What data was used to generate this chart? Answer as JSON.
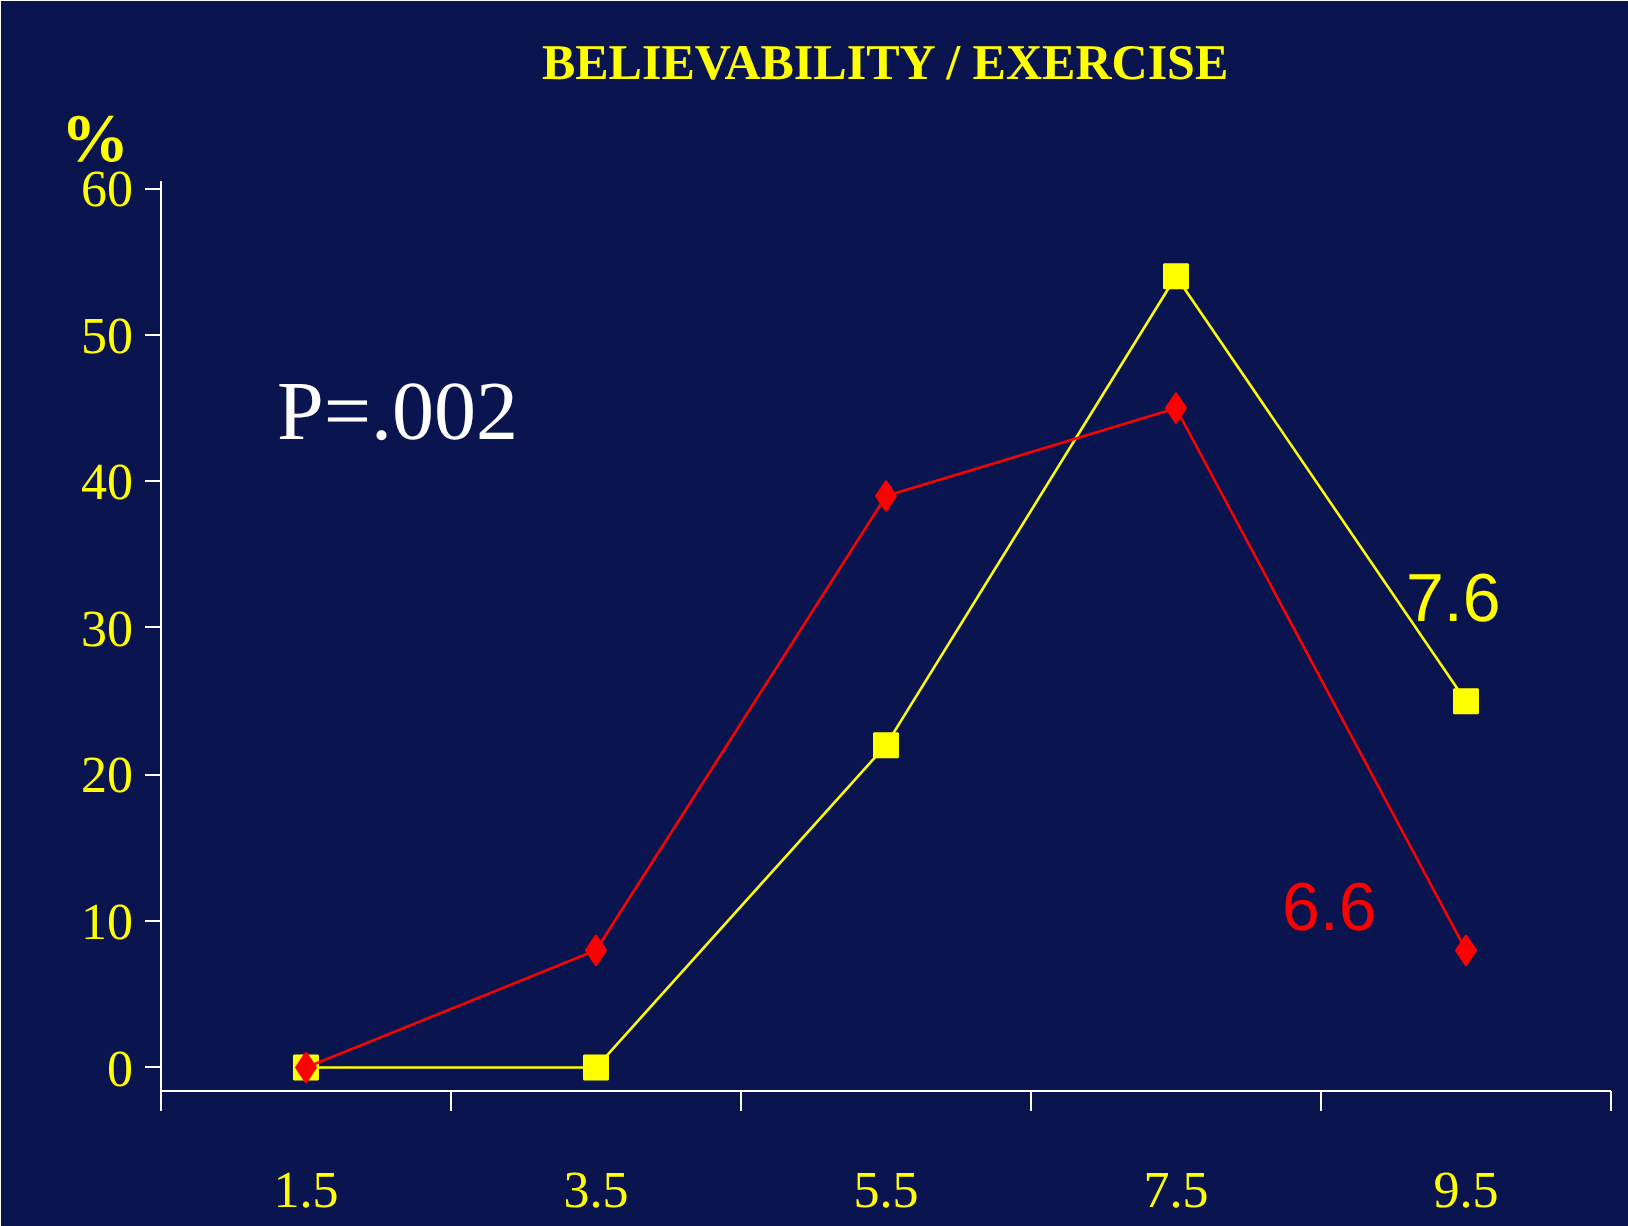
{
  "chart_data": {
    "type": "line",
    "title": "BELIEVABILITY / EXERCISE",
    "ylabel": "%",
    "categories": [
      "1.5",
      "3.5",
      "5.5",
      "7.5",
      "9.5"
    ],
    "series": [
      {
        "name": "7.6",
        "color": "#ffff00",
        "marker": "square",
        "values": [
          0,
          0,
          22,
          54,
          25
        ]
      },
      {
        "name": "6.6",
        "color": "#ff0000",
        "marker": "diamond",
        "values": [
          0,
          8,
          39,
          45,
          8
        ]
      }
    ],
    "ylim": [
      -1.6,
      60.5
    ],
    "yticks": [
      0,
      10,
      20,
      30,
      40,
      50,
      60
    ],
    "grid": false,
    "legend": false,
    "annotations": [
      "P=.002"
    ]
  }
}
